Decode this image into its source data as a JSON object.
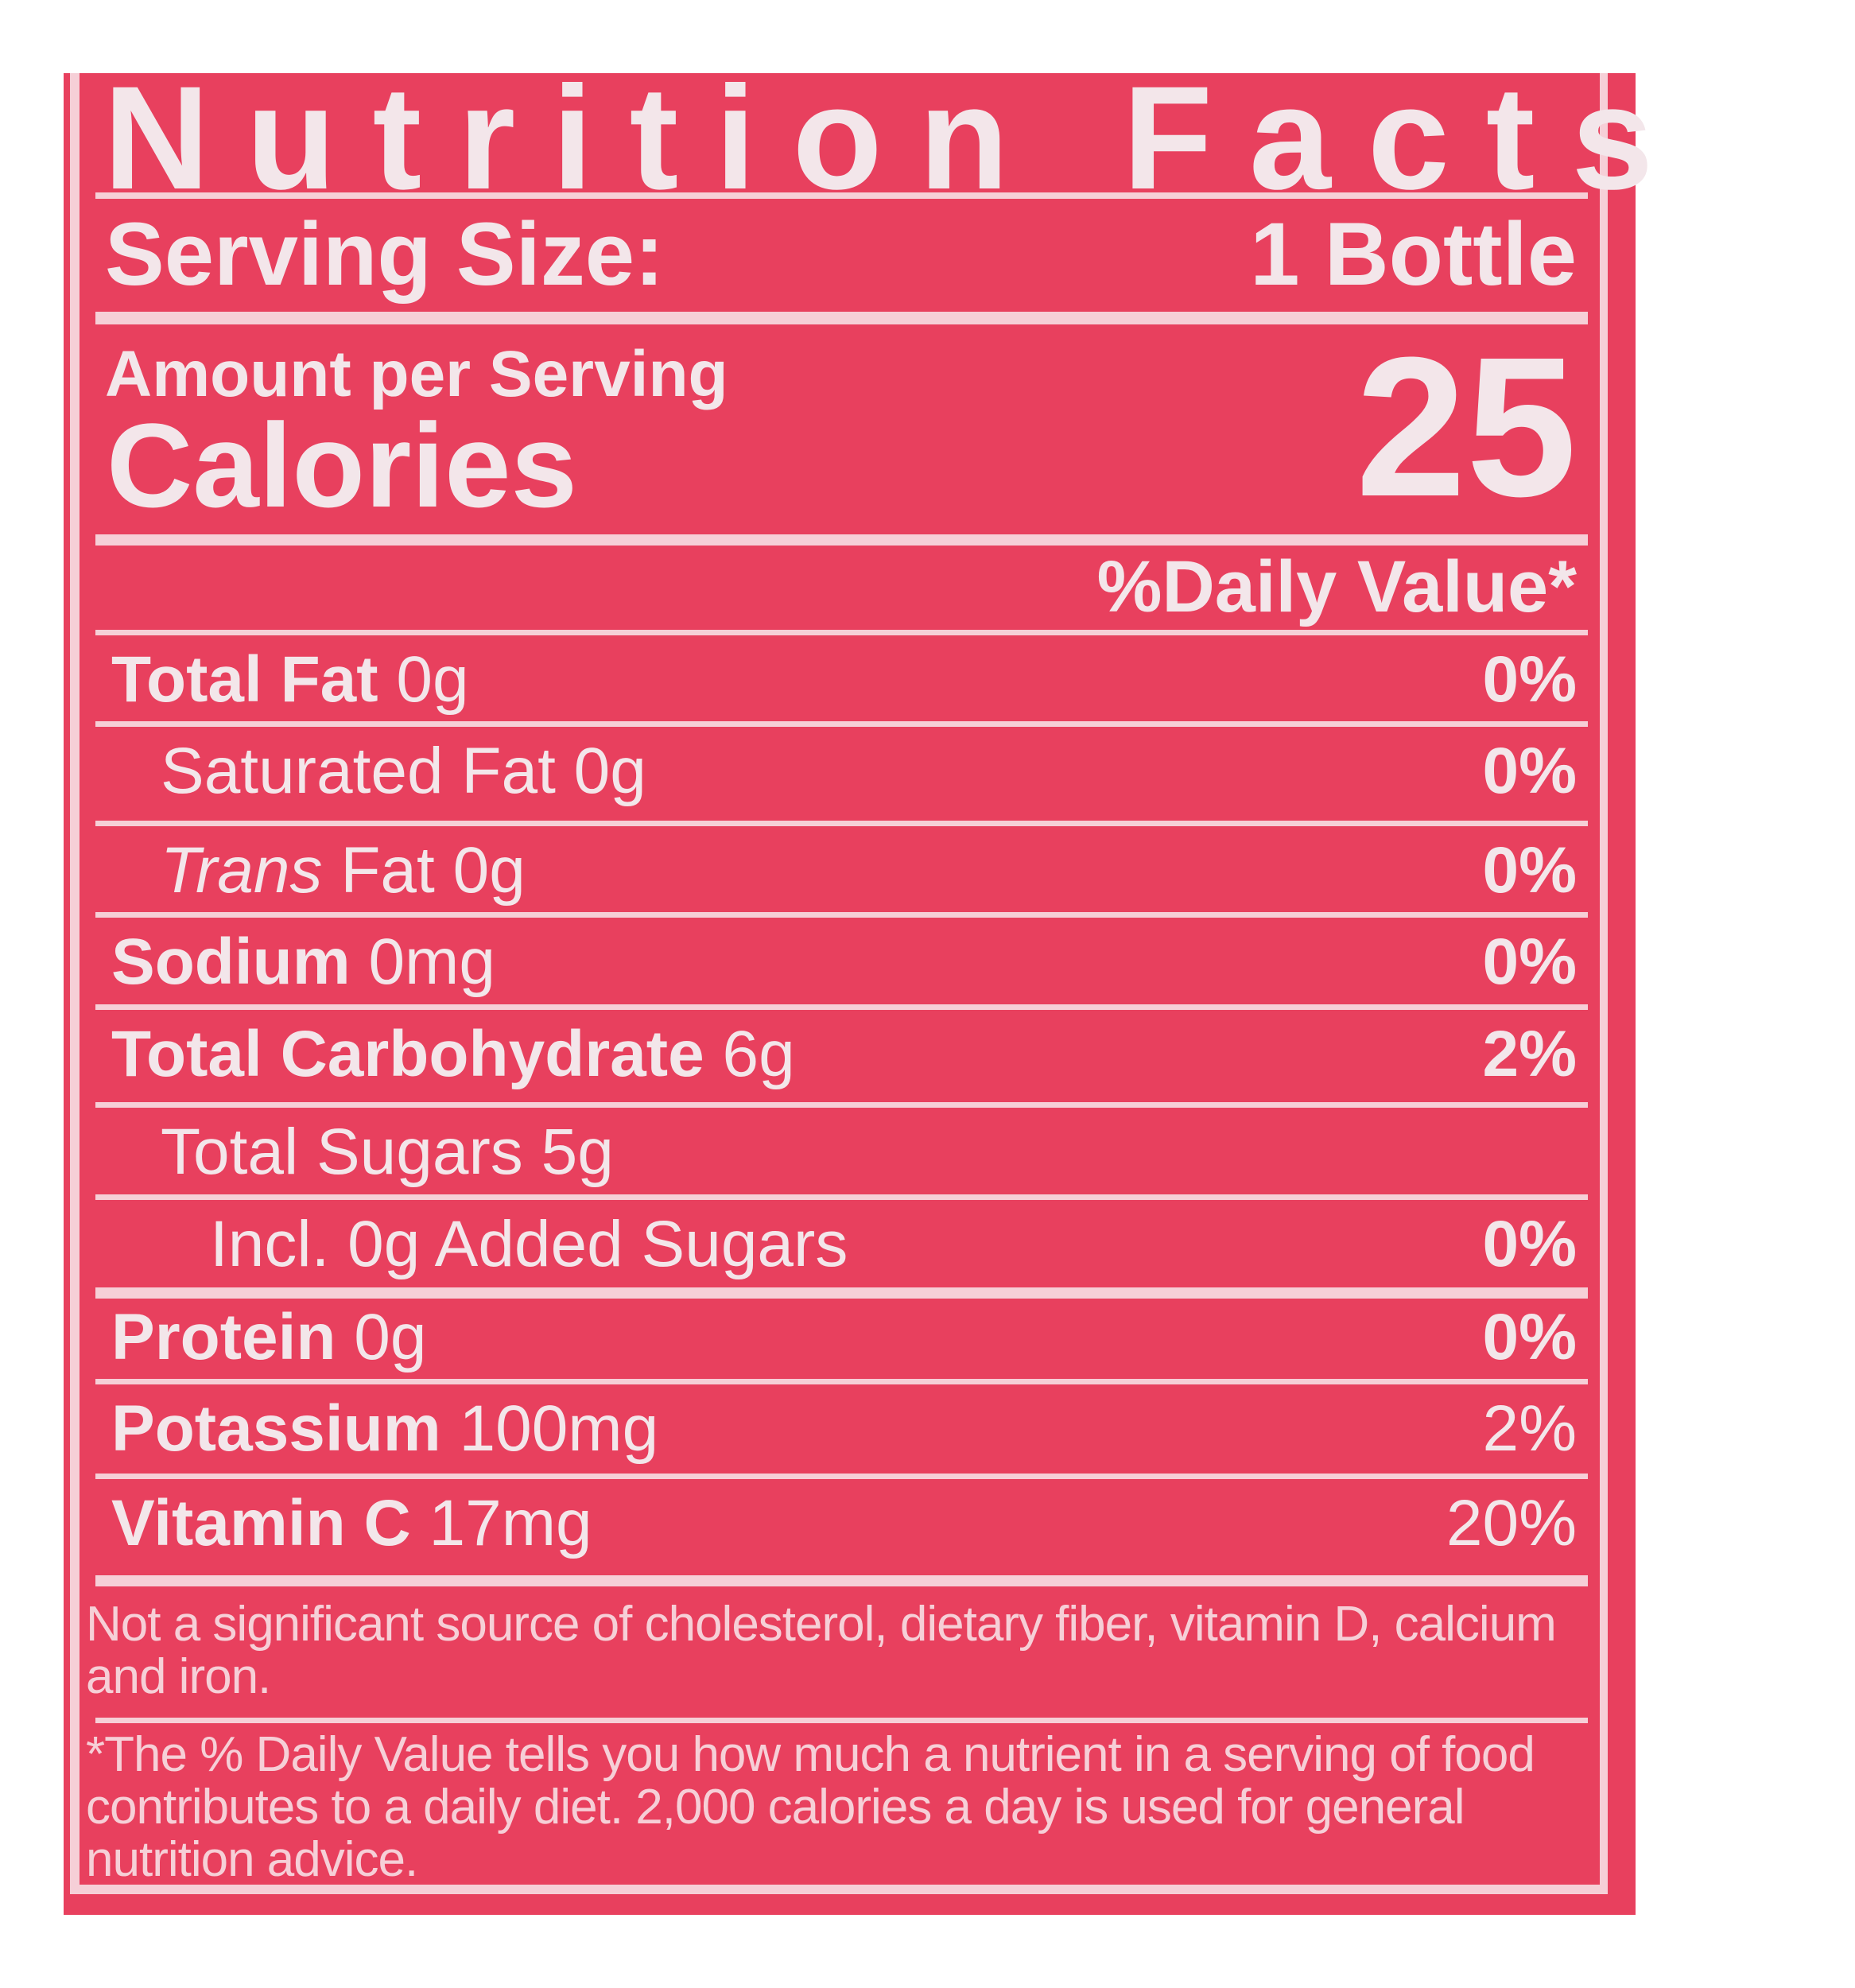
{
  "label": {
    "title": "Nutrition Facts",
    "serving_size_label": "Serving Size:",
    "serving_size_value": "1 Bottle",
    "amount_per_serving": "Amount per Serving",
    "calories_label": "Calories",
    "calories_value": "25",
    "daily_value_header": "%Daily Value*",
    "nutrients": [
      {
        "name": "Total Fat",
        "amount": "0g",
        "dv": "0%",
        "bold": true,
        "indent": 0
      },
      {
        "name": "Saturated Fat",
        "amount": "0g",
        "dv": "0%",
        "bold": false,
        "indent": 1
      },
      {
        "name": "Trans",
        "name_suffix": " Fat",
        "amount": "0g",
        "dv": "0%",
        "bold": false,
        "indent": 1,
        "italic_prefix": true
      },
      {
        "name": "Sodium",
        "amount": "0mg",
        "dv": "0%",
        "bold": true,
        "indent": 0
      },
      {
        "name": "Total Carbohydrate",
        "amount": "6g",
        "dv": "2%",
        "bold": true,
        "indent": 0
      },
      {
        "name": "Total Sugars",
        "amount": "5g",
        "dv": "",
        "bold": false,
        "indent": 1
      },
      {
        "name": "Incl. 0g Added Sugars",
        "amount": "",
        "dv": "0%",
        "bold": false,
        "indent": 2
      },
      {
        "name": "Protein",
        "amount": "0g",
        "dv": "0%",
        "bold": true,
        "indent": 0
      },
      {
        "name": "Potassium",
        "amount": "100mg",
        "dv": "2%",
        "bold": true,
        "indent": 0
      },
      {
        "name": "Vitamin C",
        "amount": "17mg",
        "dv": "20%",
        "bold": true,
        "indent": 0
      }
    ],
    "footnote_1": "Not a significant source of cholesterol, dietary fiber, vitamin D, calcium and iron.",
    "footnote_2": "*The % Daily Value tells you how much a nutrient in a serving of food contributes to a daily diet. 2,000 calories a day is used for general nutrition advice.",
    "colors": {
      "background": "#e8405e",
      "text": "#f3e6ea",
      "rules": "#f6cfd7"
    }
  }
}
